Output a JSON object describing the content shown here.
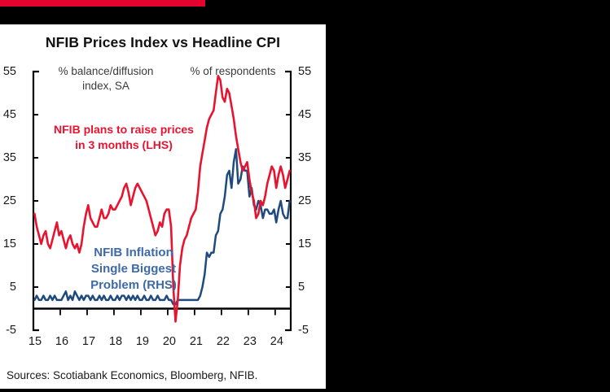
{
  "title": "NFIB Prices Index vs Headline CPI",
  "axis_headers": {
    "left_line1": "% balance/diffusion",
    "left_line2": "index, SA",
    "right": "% of respondents"
  },
  "annotations": {
    "red_line1": "NFIB plans to raise prices",
    "red_line2": "in 3 months (LHS)",
    "blue_line1": "NFIB Inflation",
    "blue_line2": "Single Biggest",
    "blue_line3": "Problem (RHS)"
  },
  "sources": "Sources: Scotiabank Economics, Bloomberg, NFIB.",
  "colors": {
    "accent_bar": "#e4032e",
    "red_series": "#e8132f",
    "blue_series": "#1f4a7e",
    "blue_text": "#3e6aa8",
    "axis": "#000000",
    "panel_bg": "#ffffff",
    "background": "#000000"
  },
  "chart_data": {
    "type": "line",
    "title": "NFIB Prices Index vs Headline CPI",
    "ylabel_left": "% balance/diffusion index, SA",
    "ylabel_right": "% of respondents",
    "ylim": [
      -5,
      55
    ],
    "yticks": [
      -5,
      5,
      15,
      25,
      35,
      45,
      55
    ],
    "grid": false,
    "legend_position": "inline-annotations",
    "x_domain_years": [
      2015,
      2024.58
    ],
    "xtick_years": [
      2015,
      2016,
      2017,
      2018,
      2019,
      2020,
      2021,
      2022,
      2023,
      2024
    ],
    "xtick_labels": [
      "15",
      "16",
      "17",
      "18",
      "19",
      "20",
      "21",
      "22",
      "23",
      "24"
    ],
    "frequency": "monthly",
    "start": "2015-01",
    "series": [
      {
        "name": "NFIB plans to raise prices in 3 months (LHS)",
        "axis": "left",
        "color": "#e8132f",
        "values": [
          22,
          19,
          17,
          15,
          17,
          18,
          15,
          14,
          16,
          18,
          20,
          17,
          18,
          16,
          14,
          16,
          17,
          15,
          14,
          15,
          13,
          15,
          19,
          22,
          24,
          21,
          20,
          19,
          19,
          21,
          23,
          21,
          21,
          22,
          24,
          23,
          23,
          24,
          25,
          26,
          28,
          29,
          27,
          24,
          26,
          28,
          29,
          28,
          27,
          26,
          25,
          23,
          21,
          19,
          17,
          18,
          20,
          19,
          22,
          23,
          23,
          19,
          5,
          -3,
          2,
          10,
          14,
          16,
          17,
          19,
          21,
          22,
          23,
          27,
          33,
          36,
          39,
          42,
          44,
          45,
          46,
          50,
          54,
          53,
          49,
          48,
          51,
          50,
          47,
          44,
          40,
          37,
          34,
          32,
          33,
          34,
          30,
          27,
          25,
          21,
          22,
          25,
          24,
          26,
          29,
          31,
          33,
          32,
          28,
          31,
          33,
          31,
          28,
          30,
          32
        ]
      },
      {
        "name": "NFIB Inflation Single Biggest Problem (RHS)",
        "axis": "right",
        "color": "#1f4a7e",
        "values": [
          2,
          3,
          2,
          2,
          3,
          2,
          2,
          3,
          2,
          3,
          2,
          2,
          2,
          3,
          4,
          2,
          3,
          2,
          4,
          3,
          2,
          3,
          2,
          3,
          3,
          2,
          3,
          2,
          2,
          3,
          2,
          3,
          2,
          2,
          3,
          2,
          2,
          3,
          2,
          3,
          3,
          2,
          3,
          2,
          3,
          2,
          3,
          2,
          2,
          3,
          2,
          2,
          3,
          2,
          2,
          3,
          2,
          2,
          2,
          3,
          2,
          2,
          1,
          1,
          2,
          2,
          2,
          2,
          2,
          2,
          2,
          2,
          2,
          2,
          3,
          5,
          8,
          13,
          12,
          13,
          13,
          17,
          18,
          22,
          23,
          26,
          31,
          32,
          28,
          34,
          37,
          29,
          30,
          33,
          32,
          32,
          26,
          28,
          24,
          23,
          25,
          24,
          21,
          23,
          23,
          22,
          22,
          23,
          20,
          23,
          25,
          22,
          21,
          21,
          25
        ]
      }
    ]
  }
}
